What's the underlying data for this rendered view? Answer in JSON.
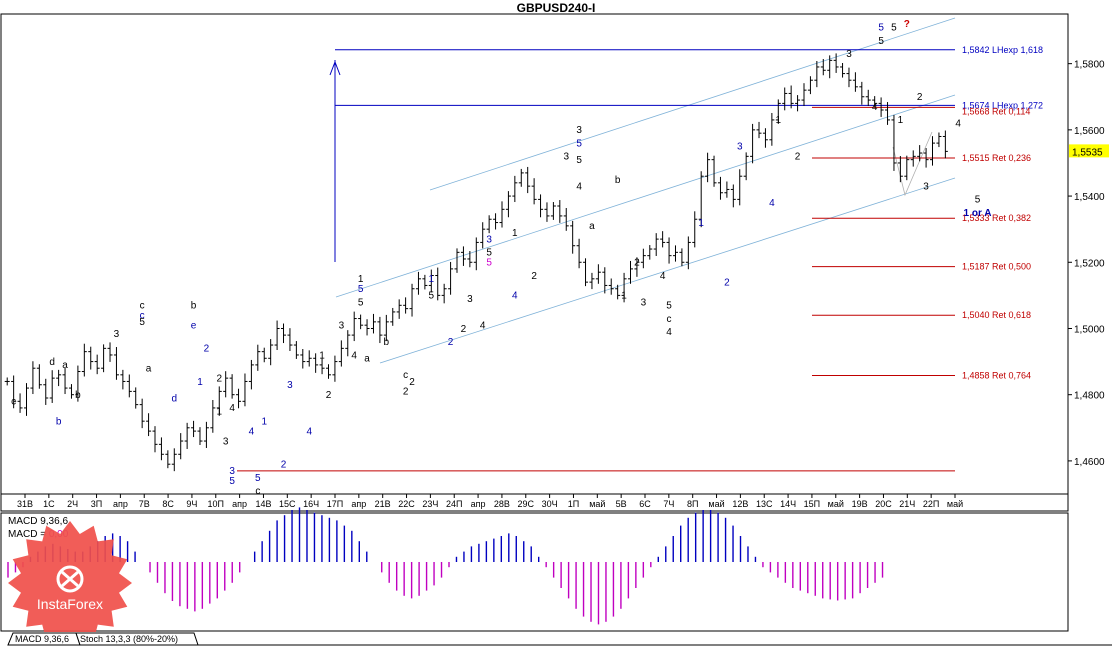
{
  "chart_data": {
    "type": "candlestick",
    "title": "GBPUSD240-I",
    "current_price": "1,5535",
    "ylim": [
      1.45,
      1.595
    ],
    "y_ticks": [
      "1,5800",
      "1,5600",
      "1,5400",
      "1,5200",
      "1,5000",
      "1,4800",
      "1,4600"
    ],
    "x_ticks": [
      "31В",
      "1С",
      "2Ч",
      "3П",
      "апр",
      "7В",
      "8С",
      "9Ч",
      "10П",
      "апр",
      "14В",
      "15С",
      "16Ч",
      "17П",
      "апр",
      "21В",
      "22С",
      "23Ч",
      "24П",
      "апр",
      "28В",
      "29С",
      "30Ч",
      "1П",
      "май",
      "5В",
      "6С",
      "7Ч",
      "8П",
      "май",
      "12В",
      "13С",
      "14Ч",
      "15П",
      "май",
      "19В",
      "20С",
      "21Ч",
      "22П",
      "май"
    ],
    "price_path": [
      1.484,
      1.478,
      1.476,
      1.482,
      1.488,
      1.483,
      1.479,
      1.485,
      1.486,
      1.482,
      1.48,
      1.487,
      1.493,
      1.49,
      1.488,
      1.494,
      1.492,
      1.486,
      1.484,
      1.481,
      1.477,
      1.472,
      1.469,
      1.465,
      1.462,
      1.459,
      1.462,
      1.466,
      1.47,
      1.469,
      1.466,
      1.47,
      1.476,
      1.481,
      1.485,
      1.48,
      1.478,
      1.484,
      1.489,
      1.493,
      1.491,
      1.495,
      1.5,
      1.498,
      1.495,
      1.492,
      1.49,
      1.491,
      1.489,
      1.488,
      1.486,
      1.49,
      1.494,
      1.498,
      1.503,
      1.501,
      1.5,
      1.502,
      1.498,
      1.502,
      1.505,
      1.507,
      1.506,
      1.512,
      1.515,
      1.513,
      1.516,
      1.51,
      1.512,
      1.518,
      1.523,
      1.521,
      1.52,
      1.526,
      1.53,
      1.533,
      1.532,
      1.536,
      1.54,
      1.544,
      1.547,
      1.543,
      1.539,
      1.536,
      1.534,
      1.537,
      1.534,
      1.531,
      1.525,
      1.52,
      1.514,
      1.515,
      1.517,
      1.513,
      1.512,
      1.51,
      1.515,
      1.518,
      1.52,
      1.522,
      1.524,
      1.527,
      1.526,
      1.522,
      1.523,
      1.52,
      1.526,
      1.533,
      1.546,
      1.551,
      1.544,
      1.541,
      1.542,
      1.539,
      1.546,
      1.552,
      1.56,
      1.559,
      1.557,
      1.563,
      1.568,
      1.571,
      1.568,
      1.569,
      1.572,
      1.575,
      1.579,
      1.578,
      1.581,
      1.579,
      1.577,
      1.575,
      1.573,
      1.57,
      1.569,
      1.568,
      1.566,
      1.563,
      1.55,
      1.546,
      1.551,
      1.552,
      1.553,
      1.551,
      1.556,
      1.558,
      1.5535
    ],
    "levels": [
      {
        "label": "1,5842 LHexp 1,618",
        "price": 1.5842,
        "color": "#0000c0",
        "kind": "ext"
      },
      {
        "label": "1,5674 LHexp 1,272",
        "price": 1.5674,
        "color": "#0000c0",
        "kind": "ext"
      },
      {
        "label": "1,5668 Ret 0,114",
        "price": 1.5668,
        "color": "#c00000",
        "kind": "ret"
      },
      {
        "label": "1,5515 Ret 0,236",
        "price": 1.5515,
        "color": "#c00000",
        "kind": "ret"
      },
      {
        "label": "1,5333 Ret 0,382",
        "price": 1.5333,
        "color": "#c00000",
        "kind": "ret"
      },
      {
        "label": "1,5187 Ret 0,500",
        "price": 1.5187,
        "color": "#c00000",
        "kind": "ret"
      },
      {
        "label": "1,5040 Ret 0,618",
        "price": 1.504,
        "color": "#c00000",
        "kind": "ret"
      },
      {
        "label": "1,4858 Ret 0,764",
        "price": 1.4858,
        "color": "#c00000",
        "kind": "ret"
      }
    ],
    "wave_labels": [
      {
        "t": "c",
        "i": 1,
        "p": 1.477,
        "c": "#000"
      },
      {
        "t": "d",
        "i": 7,
        "p": 1.489,
        "c": "#000"
      },
      {
        "t": "a",
        "i": 9,
        "p": 1.488,
        "c": "#000"
      },
      {
        "t": "b",
        "i": 11,
        "p": 1.479,
        "c": "#000"
      },
      {
        "t": "b",
        "i": 8,
        "p": 1.471,
        "c": "#00a"
      },
      {
        "t": "3",
        "i": 17,
        "p": 1.4975,
        "c": "#000"
      },
      {
        "t": "c",
        "i": 21,
        "p": 1.506,
        "c": "#000"
      },
      {
        "t": "c",
        "i": 21,
        "p": 1.503,
        "c": "#00a"
      },
      {
        "t": "5",
        "i": 21,
        "p": 1.501,
        "c": "#000"
      },
      {
        "t": "a",
        "i": 22,
        "p": 1.487,
        "c": "#000"
      },
      {
        "t": "d",
        "i": 26,
        "p": 1.478,
        "c": "#00a"
      },
      {
        "t": "b",
        "i": 29,
        "p": 1.506,
        "c": "#000"
      },
      {
        "t": "e",
        "i": 29,
        "p": 1.5,
        "c": "#00a"
      },
      {
        "t": "2",
        "i": 31,
        "p": 1.493,
        "c": "#00a"
      },
      {
        "t": "1",
        "i": 30,
        "p": 1.483,
        "c": "#00a"
      },
      {
        "t": "2",
        "i": 33,
        "p": 1.484,
        "c": "#000"
      },
      {
        "t": "1",
        "i": 33,
        "p": 1.474,
        "c": "#000"
      },
      {
        "t": "4",
        "i": 35,
        "p": 1.475,
        "c": "#000"
      },
      {
        "t": "3",
        "i": 34,
        "p": 1.465,
        "c": "#000"
      },
      {
        "t": "4",
        "i": 38,
        "p": 1.468,
        "c": "#00a"
      },
      {
        "t": "3",
        "i": 35,
        "p": 1.456,
        "c": "#00a"
      },
      {
        "t": "5",
        "i": 35,
        "p": 1.453,
        "c": "#00a"
      },
      {
        "t": "1",
        "i": 40,
        "p": 1.471,
        "c": "#00a"
      },
      {
        "t": "5",
        "i": 39,
        "p": 1.454,
        "c": "#00a"
      },
      {
        "t": "2",
        "i": 43,
        "p": 1.458,
        "c": "#00a"
      },
      {
        "t": "c",
        "i": 39,
        "p": 1.45,
        "c": "#000"
      },
      {
        "t": "?",
        "i": 39,
        "p": 1.4455,
        "c": "#c00"
      },
      {
        "t": "3",
        "i": 44,
        "p": 1.482,
        "c": "#00a"
      },
      {
        "t": "4",
        "i": 47,
        "p": 1.468,
        "c": "#00a"
      },
      {
        "t": "2",
        "i": 50,
        "p": 1.479,
        "c": "#000"
      },
      {
        "t": "1",
        "i": 49,
        "p": 1.491,
        "c": "#000"
      },
      {
        "t": "3",
        "i": 52,
        "p": 1.5,
        "c": "#000"
      },
      {
        "t": "4",
        "i": 54,
        "p": 1.491,
        "c": "#000"
      },
      {
        "t": "1",
        "i": 55,
        "p": 1.514,
        "c": "#000"
      },
      {
        "t": "5",
        "i": 55,
        "p": 1.511,
        "c": "#00a"
      },
      {
        "t": "5",
        "i": 55,
        "p": 1.507,
        "c": "#000"
      },
      {
        "t": "a",
        "i": 56,
        "p": 1.49,
        "c": "#000"
      },
      {
        "t": "b",
        "i": 59,
        "p": 1.495,
        "c": "#000"
      },
      {
        "t": "c",
        "i": 62,
        "p": 1.485,
        "c": "#000"
      },
      {
        "t": "2",
        "i": 63,
        "p": 1.483,
        "c": "#000"
      },
      {
        "t": "2",
        "i": 62,
        "p": 1.48,
        "c": "#000"
      },
      {
        "t": "1",
        "i": 66,
        "p": 1.514,
        "c": "#00a"
      },
      {
        "t": "5",
        "i": 66,
        "p": 1.509,
        "c": "#000"
      },
      {
        "t": "2",
        "i": 69,
        "p": 1.495,
        "c": "#00a"
      },
      {
        "t": "3",
        "i": 72,
        "p": 1.508,
        "c": "#000"
      },
      {
        "t": "4",
        "i": 74,
        "p": 1.5,
        "c": "#000"
      },
      {
        "t": "2",
        "i": 71,
        "p": 1.499,
        "c": "#000"
      },
      {
        "t": "3",
        "i": 75,
        "p": 1.526,
        "c": "#00a"
      },
      {
        "t": "5",
        "i": 75,
        "p": 1.522,
        "c": "#000"
      },
      {
        "t": "5",
        "i": 75,
        "p": 1.519,
        "c": "#c0c"
      },
      {
        "t": "4",
        "i": 79,
        "p": 1.509,
        "c": "#00a"
      },
      {
        "t": "1",
        "i": 79,
        "p": 1.528,
        "c": "#000"
      },
      {
        "t": "2",
        "i": 82,
        "p": 1.515,
        "c": "#000"
      },
      {
        "t": "3",
        "i": 87,
        "p": 1.551,
        "c": "#000"
      },
      {
        "t": "3",
        "i": 89,
        "p": 1.559,
        "c": "#000"
      },
      {
        "t": "5",
        "i": 89,
        "p": 1.555,
        "c": "#00a"
      },
      {
        "t": "5",
        "i": 89,
        "p": 1.55,
        "c": "#000"
      },
      {
        "t": "4",
        "i": 89,
        "p": 1.542,
        "c": "#000"
      },
      {
        "t": "b",
        "i": 95,
        "p": 1.544,
        "c": "#000"
      },
      {
        "t": "a",
        "i": 91,
        "p": 1.53,
        "c": "#000"
      },
      {
        "t": "2",
        "i": 98,
        "p": 1.519,
        "c": "#000"
      },
      {
        "t": "1",
        "i": 96,
        "p": 1.509,
        "c": "#000"
      },
      {
        "t": "3",
        "i": 99,
        "p": 1.507,
        "c": "#000"
      },
      {
        "t": "4",
        "i": 102,
        "p": 1.515,
        "c": "#000"
      },
      {
        "t": "5",
        "i": 103,
        "p": 1.506,
        "c": "#000"
      },
      {
        "t": "c",
        "i": 103,
        "p": 1.502,
        "c": "#000"
      },
      {
        "t": "4",
        "i": 103,
        "p": 1.498,
        "c": "#000"
      },
      {
        "t": "1",
        "i": 108,
        "p": 1.531,
        "c": "#00a"
      },
      {
        "t": "2",
        "i": 112,
        "p": 1.513,
        "c": "#00a"
      },
      {
        "t": "3",
        "i": 114,
        "p": 1.554,
        "c": "#00a"
      },
      {
        "t": "4",
        "i": 119,
        "p": 1.537,
        "c": "#00a"
      },
      {
        "t": "1",
        "i": 120,
        "p": 1.562,
        "c": "#000"
      },
      {
        "t": "2",
        "i": 123,
        "p": 1.551,
        "c": "#000"
      },
      {
        "t": "3",
        "i": 131,
        "p": 1.582,
        "c": "#000"
      },
      {
        "t": "5",
        "i": 136,
        "p": 1.59,
        "c": "#00a"
      },
      {
        "t": "5",
        "i": 136,
        "p": 1.586,
        "c": "#000"
      },
      {
        "t": "5",
        "i": 138,
        "p": 1.59,
        "c": "#000"
      },
      {
        "t": "?",
        "i": 140,
        "p": 1.591,
        "c": "#c00"
      },
      {
        "t": "4",
        "i": 135,
        "p": 1.566,
        "c": "#000"
      },
      {
        "t": "2",
        "i": 142,
        "p": 1.569,
        "c": "#000"
      },
      {
        "t": "1",
        "i": 139,
        "p": 1.562,
        "c": "#000"
      },
      {
        "t": "3",
        "i": 143,
        "p": 1.542,
        "c": "#000"
      },
      {
        "t": "4",
        "i": 148,
        "p": 1.561,
        "c": "#000"
      },
      {
        "t": "5",
        "i": 151,
        "p": 1.538,
        "c": "#000"
      },
      {
        "t": "1 or A",
        "i": 151,
        "p": 1.534,
        "c": "#00a"
      }
    ],
    "macd": {
      "label_line1": "MACD 9,36,6",
      "label_line2_prefix": "MACD = ",
      "label_line2_value": "0,00",
      "values": [
        -0.3,
        -0.2,
        -0.1,
        0.1,
        0.2,
        0.3,
        0.35,
        0.3,
        0.25,
        0.2,
        0.2,
        0.3,
        0.4,
        0.5,
        0.55,
        0.5,
        0.4,
        0.2,
        0.0,
        -0.2,
        -0.4,
        -0.6,
        -0.75,
        -0.85,
        -0.9,
        -0.95,
        -0.9,
        -0.8,
        -0.7,
        -0.55,
        -0.4,
        -0.2,
        0.0,
        0.2,
        0.4,
        0.6,
        0.8,
        0.9,
        1.0,
        1.05,
        1.0,
        0.95,
        0.9,
        0.85,
        0.8,
        0.7,
        0.6,
        0.4,
        0.2,
        0.0,
        -0.2,
        -0.4,
        -0.55,
        -0.65,
        -0.7,
        -0.65,
        -0.55,
        -0.45,
        -0.3,
        -0.1,
        0.1,
        0.2,
        0.3,
        0.35,
        0.4,
        0.45,
        0.5,
        0.55,
        0.5,
        0.4,
        0.3,
        0.1,
        -0.1,
        -0.3,
        -0.5,
        -0.7,
        -0.9,
        -1.05,
        -1.15,
        -1.2,
        -1.15,
        -1.05,
        -0.9,
        -0.7,
        -0.5,
        -0.3,
        -0.1,
        0.1,
        0.3,
        0.5,
        0.7,
        0.85,
        0.95,
        1.0,
        1.0,
        0.95,
        0.85,
        0.7,
        0.5,
        0.3,
        0.1,
        -0.1,
        -0.2,
        -0.3,
        -0.4,
        -0.5,
        -0.55,
        -0.6,
        -0.65,
        -0.7,
        -0.72,
        -0.74,
        -0.72,
        -0.7,
        -0.6,
        -0.5,
        -0.4,
        -0.3
      ]
    },
    "bottom_tabs": [
      "MACD 9,36,6",
      "Stoch 13,3,3 (80%-20%)"
    ]
  },
  "watermark": "InstaForex",
  "colors": {
    "ext": "#0000c0",
    "ret": "#c00000",
    "channel": "#7fb2d8",
    "macd": "#c000c0",
    "macd_pos": "#0000c0"
  }
}
